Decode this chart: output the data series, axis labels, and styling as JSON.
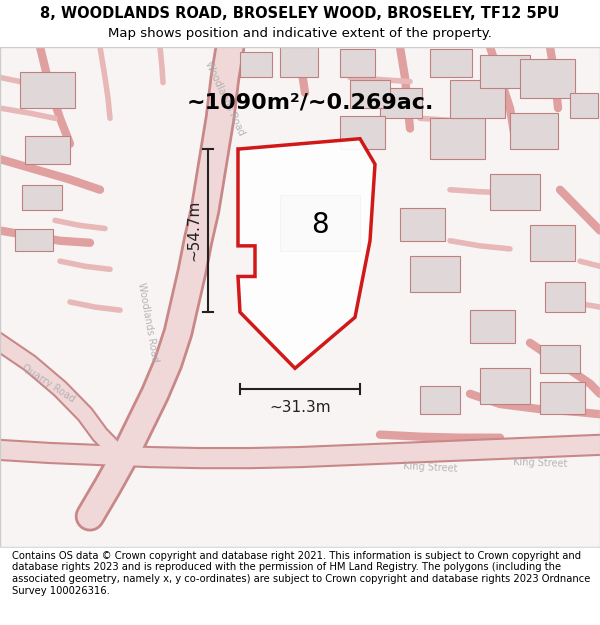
{
  "title_line1": "8, WOODLANDS ROAD, BROSELEY WOOD, BROSELEY, TF12 5PU",
  "title_line2": "Map shows position and indicative extent of the property.",
  "footer_text": "Contains OS data © Crown copyright and database right 2021. This information is subject to Crown copyright and database rights 2023 and is reproduced with the permission of HM Land Registry. The polygons (including the associated geometry, namely x, y co-ordinates) are subject to Crown copyright and database rights 2023 Ordnance Survey 100026316.",
  "area_label": "~1090m²/~0.269ac.",
  "number_label": "8",
  "dim_vertical": "~54.7m",
  "dim_horizontal": "~31.3m",
  "bg_color": "#f5f0f0",
  "map_bg": "#ffffff",
  "road_color_main": "#e8a0a0",
  "road_color_light": "#f0c0c0",
  "polygon_color": "#cc0000",
  "polygon_fill": "#ffffff",
  "dim_color": "#222222",
  "road_label_color": "#aaaaaa",
  "building_color": "#cccccc",
  "title_fontsize": 10.5,
  "subtitle_fontsize": 9.5,
  "footer_fontsize": 7.2,
  "area_fontsize": 16,
  "number_fontsize": 20,
  "dim_fontsize": 11
}
